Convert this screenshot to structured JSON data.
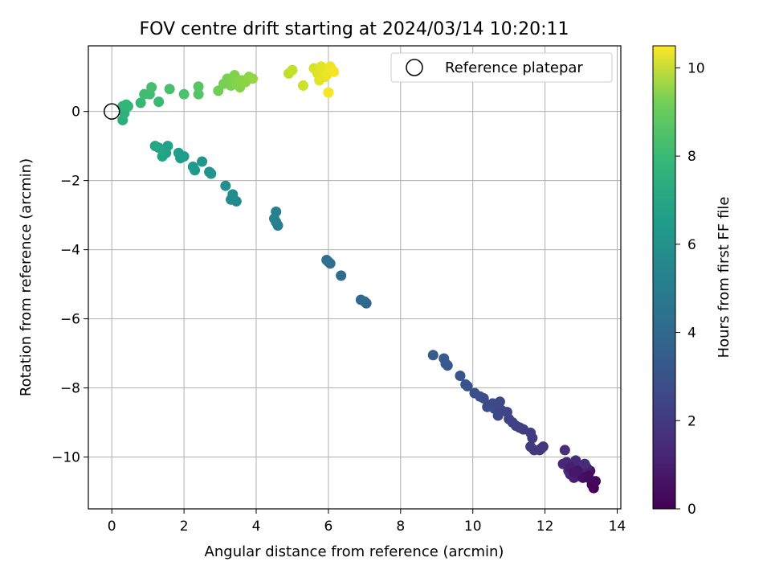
{
  "chart_data": {
    "type": "scatter",
    "title": "FOV centre drift starting at 2024/03/14 10:20:11",
    "xlabel": "Angular distance from reference (arcmin)",
    "ylabel": "Rotation from reference (arcmin)",
    "xlim": [
      -0.65,
      14.1
    ],
    "ylim": [
      -11.5,
      1.9
    ],
    "xticks": [
      0,
      2,
      4,
      6,
      8,
      10,
      12,
      14
    ],
    "xtick_labels": [
      "0",
      "2",
      "4",
      "6",
      "8",
      "10",
      "12",
      "14"
    ],
    "yticks": [
      0,
      -2,
      -4,
      -6,
      -8,
      -10
    ],
    "ytick_labels": [
      "0",
      "−2",
      "−4",
      "−6",
      "−8",
      "−10"
    ],
    "grid": true,
    "legend": {
      "placement": "top-right",
      "entries": [
        {
          "label": "Reference platepar",
          "marker": "open-circle"
        }
      ]
    },
    "colorbar": {
      "label": "Hours from first FF file",
      "colormap": "viridis",
      "range": [
        0,
        10.5
      ],
      "ticks": [
        0,
        2,
        4,
        6,
        8,
        10
      ],
      "tick_labels": [
        "0",
        "2",
        "4",
        "6",
        "8",
        "10"
      ]
    },
    "reference_point": {
      "x": 0,
      "y": 0
    },
    "points": [
      {
        "x": 13.35,
        "y": -10.9,
        "c": 0.05
      },
      {
        "x": 13.3,
        "y": -10.8,
        "c": 0.15
      },
      {
        "x": 13.4,
        "y": -10.7,
        "c": 0.25
      },
      {
        "x": 13.2,
        "y": -10.6,
        "c": 0.35
      },
      {
        "x": 13.1,
        "y": -10.5,
        "c": 0.45
      },
      {
        "x": 13.25,
        "y": -10.4,
        "c": 0.55
      },
      {
        "x": 13.0,
        "y": -10.45,
        "c": 0.65
      },
      {
        "x": 12.9,
        "y": -10.55,
        "c": 0.75
      },
      {
        "x": 12.8,
        "y": -10.6,
        "c": 0.85
      },
      {
        "x": 13.15,
        "y": -10.3,
        "c": 0.95
      },
      {
        "x": 12.95,
        "y": -10.35,
        "c": 1.0
      },
      {
        "x": 12.7,
        "y": -10.5,
        "c": 1.05
      },
      {
        "x": 12.75,
        "y": -10.25,
        "c": 1.1
      },
      {
        "x": 12.6,
        "y": -10.15,
        "c": 1.15
      },
      {
        "x": 12.5,
        "y": -10.2,
        "c": 1.2
      },
      {
        "x": 12.85,
        "y": -10.1,
        "c": 1.25
      },
      {
        "x": 12.65,
        "y": -10.4,
        "c": 1.3
      },
      {
        "x": 13.1,
        "y": -10.2,
        "c": 1.35
      },
      {
        "x": 12.55,
        "y": -9.8,
        "c": 1.4
      },
      {
        "x": 13.05,
        "y": -10.6,
        "c": 0.4
      },
      {
        "x": 12.9,
        "y": -10.4,
        "c": 0.6
      },
      {
        "x": 13.2,
        "y": -10.55,
        "c": 0.3
      },
      {
        "x": 12.7,
        "y": -10.3,
        "c": 0.9
      },
      {
        "x": 12.8,
        "y": -10.45,
        "c": 0.7
      },
      {
        "x": 11.95,
        "y": -9.7,
        "c": 1.6
      },
      {
        "x": 11.85,
        "y": -9.8,
        "c": 1.65
      },
      {
        "x": 11.7,
        "y": -9.8,
        "c": 1.7
      },
      {
        "x": 11.6,
        "y": -9.7,
        "c": 1.75
      },
      {
        "x": 11.9,
        "y": -9.75,
        "c": 1.68
      },
      {
        "x": 11.65,
        "y": -9.45,
        "c": 1.8
      },
      {
        "x": 11.6,
        "y": -9.3,
        "c": 1.85
      },
      {
        "x": 11.4,
        "y": -9.2,
        "c": 1.9
      },
      {
        "x": 11.3,
        "y": -9.15,
        "c": 1.95
      },
      {
        "x": 11.2,
        "y": -9.1,
        "c": 2.0
      },
      {
        "x": 11.1,
        "y": -9.0,
        "c": 2.05
      },
      {
        "x": 11.0,
        "y": -8.9,
        "c": 2.1
      },
      {
        "x": 10.95,
        "y": -8.7,
        "c": 2.15
      },
      {
        "x": 10.8,
        "y": -8.65,
        "c": 2.2
      },
      {
        "x": 10.7,
        "y": -8.8,
        "c": 2.25
      },
      {
        "x": 10.6,
        "y": -8.6,
        "c": 2.3
      },
      {
        "x": 10.7,
        "y": -8.45,
        "c": 2.35
      },
      {
        "x": 10.5,
        "y": -8.5,
        "c": 2.4
      },
      {
        "x": 10.4,
        "y": -8.55,
        "c": 2.45
      },
      {
        "x": 10.3,
        "y": -8.3,
        "c": 2.5
      },
      {
        "x": 10.2,
        "y": -8.25,
        "c": 2.55
      },
      {
        "x": 10.05,
        "y": -8.15,
        "c": 2.6
      },
      {
        "x": 10.75,
        "y": -8.4,
        "c": 2.32
      },
      {
        "x": 10.55,
        "y": -8.45,
        "c": 2.38
      },
      {
        "x": 9.85,
        "y": -7.95,
        "c": 2.7
      },
      {
        "x": 9.8,
        "y": -7.9,
        "c": 2.75
      },
      {
        "x": 9.65,
        "y": -7.65,
        "c": 2.8
      },
      {
        "x": 9.3,
        "y": -7.35,
        "c": 2.9
      },
      {
        "x": 9.25,
        "y": -7.3,
        "c": 2.95
      },
      {
        "x": 9.2,
        "y": -7.15,
        "c": 3.0
      },
      {
        "x": 8.9,
        "y": -7.05,
        "c": 3.05
      },
      {
        "x": 7.05,
        "y": -5.55,
        "c": 3.5
      },
      {
        "x": 7.0,
        "y": -5.5,
        "c": 3.55
      },
      {
        "x": 6.9,
        "y": -5.45,
        "c": 3.6
      },
      {
        "x": 6.35,
        "y": -4.75,
        "c": 3.7
      },
      {
        "x": 6.05,
        "y": -4.4,
        "c": 3.8
      },
      {
        "x": 6.0,
        "y": -4.35,
        "c": 3.85
      },
      {
        "x": 5.95,
        "y": -4.3,
        "c": 3.9
      },
      {
        "x": 4.6,
        "y": -3.3,
        "c": 4.5
      },
      {
        "x": 4.55,
        "y": -3.2,
        "c": 4.55
      },
      {
        "x": 4.5,
        "y": -3.1,
        "c": 4.6
      },
      {
        "x": 4.55,
        "y": -2.9,
        "c": 4.65
      },
      {
        "x": 3.45,
        "y": -2.6,
        "c": 5.0
      },
      {
        "x": 3.3,
        "y": -2.55,
        "c": 5.05
      },
      {
        "x": 3.35,
        "y": -2.4,
        "c": 5.1
      },
      {
        "x": 3.15,
        "y": -2.15,
        "c": 5.2
      },
      {
        "x": 2.75,
        "y": -1.8,
        "c": 5.4
      },
      {
        "x": 2.7,
        "y": -1.75,
        "c": 5.45
      },
      {
        "x": 2.5,
        "y": -1.45,
        "c": 5.55
      },
      {
        "x": 2.3,
        "y": -1.7,
        "c": 5.6
      },
      {
        "x": 2.25,
        "y": -1.6,
        "c": 5.65
      },
      {
        "x": 2.0,
        "y": -1.3,
        "c": 5.75
      },
      {
        "x": 1.9,
        "y": -1.35,
        "c": 5.8
      },
      {
        "x": 1.85,
        "y": -1.2,
        "c": 5.85
      },
      {
        "x": 1.55,
        "y": -1.0,
        "c": 5.95
      },
      {
        "x": 1.5,
        "y": -1.2,
        "c": 6.0
      },
      {
        "x": 1.4,
        "y": -1.3,
        "c": 6.05
      },
      {
        "x": 1.45,
        "y": -1.15,
        "c": 6.1
      },
      {
        "x": 1.3,
        "y": -1.05,
        "c": 6.15
      },
      {
        "x": 1.2,
        "y": -1.0,
        "c": 6.2
      },
      {
        "x": 0.3,
        "y": -0.25,
        "c": 6.6
      },
      {
        "x": 0.35,
        "y": -0.05,
        "c": 6.7
      },
      {
        "x": 0.3,
        "y": 0.15,
        "c": 6.8
      },
      {
        "x": 0.4,
        "y": 0.2,
        "c": 6.85
      },
      {
        "x": 0.45,
        "y": 0.15,
        "c": 6.9
      },
      {
        "x": 0.8,
        "y": 0.25,
        "c": 7.0
      },
      {
        "x": 1.3,
        "y": 0.28,
        "c": 7.1
      },
      {
        "x": 0.9,
        "y": 0.5,
        "c": 7.2
      },
      {
        "x": 1.05,
        "y": 0.5,
        "c": 7.25
      },
      {
        "x": 1.1,
        "y": 0.7,
        "c": 7.3
      },
      {
        "x": 1.6,
        "y": 0.65,
        "c": 7.4
      },
      {
        "x": 2.0,
        "y": 0.5,
        "c": 7.5
      },
      {
        "x": 2.4,
        "y": 0.5,
        "c": 7.6
      },
      {
        "x": 2.4,
        "y": 0.72,
        "c": 7.7
      },
      {
        "x": 2.95,
        "y": 0.6,
        "c": 8.2
      },
      {
        "x": 3.1,
        "y": 0.8,
        "c": 8.3
      },
      {
        "x": 3.2,
        "y": 0.95,
        "c": 8.35
      },
      {
        "x": 3.3,
        "y": 0.75,
        "c": 8.4
      },
      {
        "x": 3.4,
        "y": 1.05,
        "c": 8.45
      },
      {
        "x": 3.45,
        "y": 0.85,
        "c": 8.5
      },
      {
        "x": 3.55,
        "y": 0.7,
        "c": 8.55
      },
      {
        "x": 3.6,
        "y": 0.9,
        "c": 8.6
      },
      {
        "x": 3.7,
        "y": 0.85,
        "c": 8.65
      },
      {
        "x": 3.8,
        "y": 1.0,
        "c": 8.7
      },
      {
        "x": 3.9,
        "y": 0.95,
        "c": 8.75
      },
      {
        "x": 4.9,
        "y": 1.1,
        "c": 9.5
      },
      {
        "x": 5.0,
        "y": 1.2,
        "c": 9.6
      },
      {
        "x": 5.3,
        "y": 0.75,
        "c": 9.7
      },
      {
        "x": 5.6,
        "y": 1.25,
        "c": 9.9
      },
      {
        "x": 5.7,
        "y": 1.1,
        "c": 10.0
      },
      {
        "x": 5.8,
        "y": 1.3,
        "c": 10.05
      },
      {
        "x": 5.85,
        "y": 1.2,
        "c": 10.1
      },
      {
        "x": 5.9,
        "y": 1.0,
        "c": 10.15
      },
      {
        "x": 5.95,
        "y": 1.05,
        "c": 10.2
      },
      {
        "x": 6.05,
        "y": 1.3,
        "c": 10.25
      },
      {
        "x": 6.1,
        "y": 1.2,
        "c": 10.3
      },
      {
        "x": 6.15,
        "y": 1.15,
        "c": 10.35
      },
      {
        "x": 6.0,
        "y": 0.55,
        "c": 10.4
      },
      {
        "x": 5.75,
        "y": 0.9,
        "c": 10.1
      }
    ]
  }
}
